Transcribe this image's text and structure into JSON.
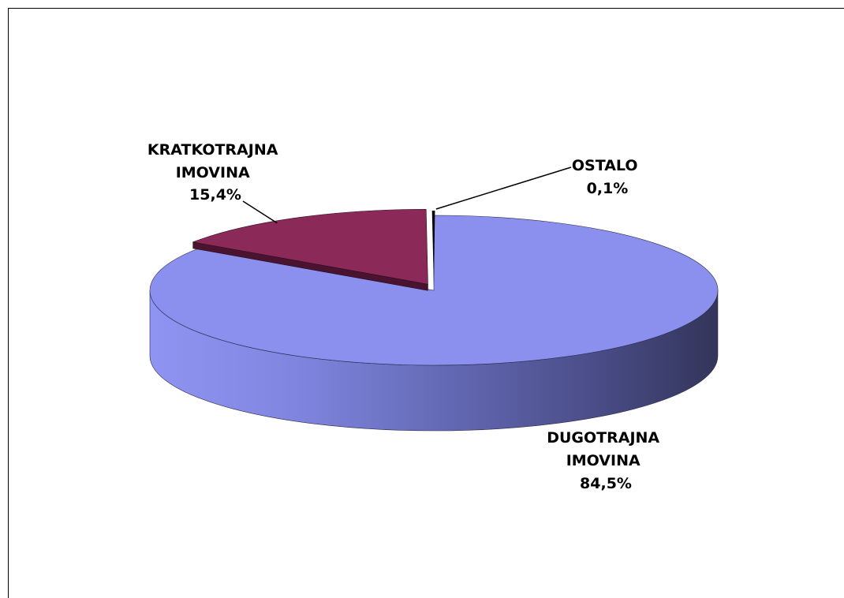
{
  "chart_data": {
    "type": "pie",
    "style": "3d-exploded",
    "slices": [
      {
        "name": "DUGOTRAJNA IMOVINA",
        "label_lines": [
          "DUGOTRAJNA",
          "IMOVINA",
          "84,5%"
        ],
        "value": 84.5,
        "color": "#8b8fee",
        "shade": "#383a62"
      },
      {
        "name": "KRATKOTRAJNA IMOVINA",
        "label_lines": [
          "KRATKOTRAJNA",
          "IMOVINA",
          "15,4%"
        ],
        "value": 15.4,
        "color": "#8b2a58",
        "shade": "#4a1430"
      },
      {
        "name": "OSTALO",
        "label_lines": [
          "OSTALO",
          "0,1%"
        ],
        "value": 0.1,
        "color": "#000000",
        "shade": "#000000"
      }
    ]
  }
}
